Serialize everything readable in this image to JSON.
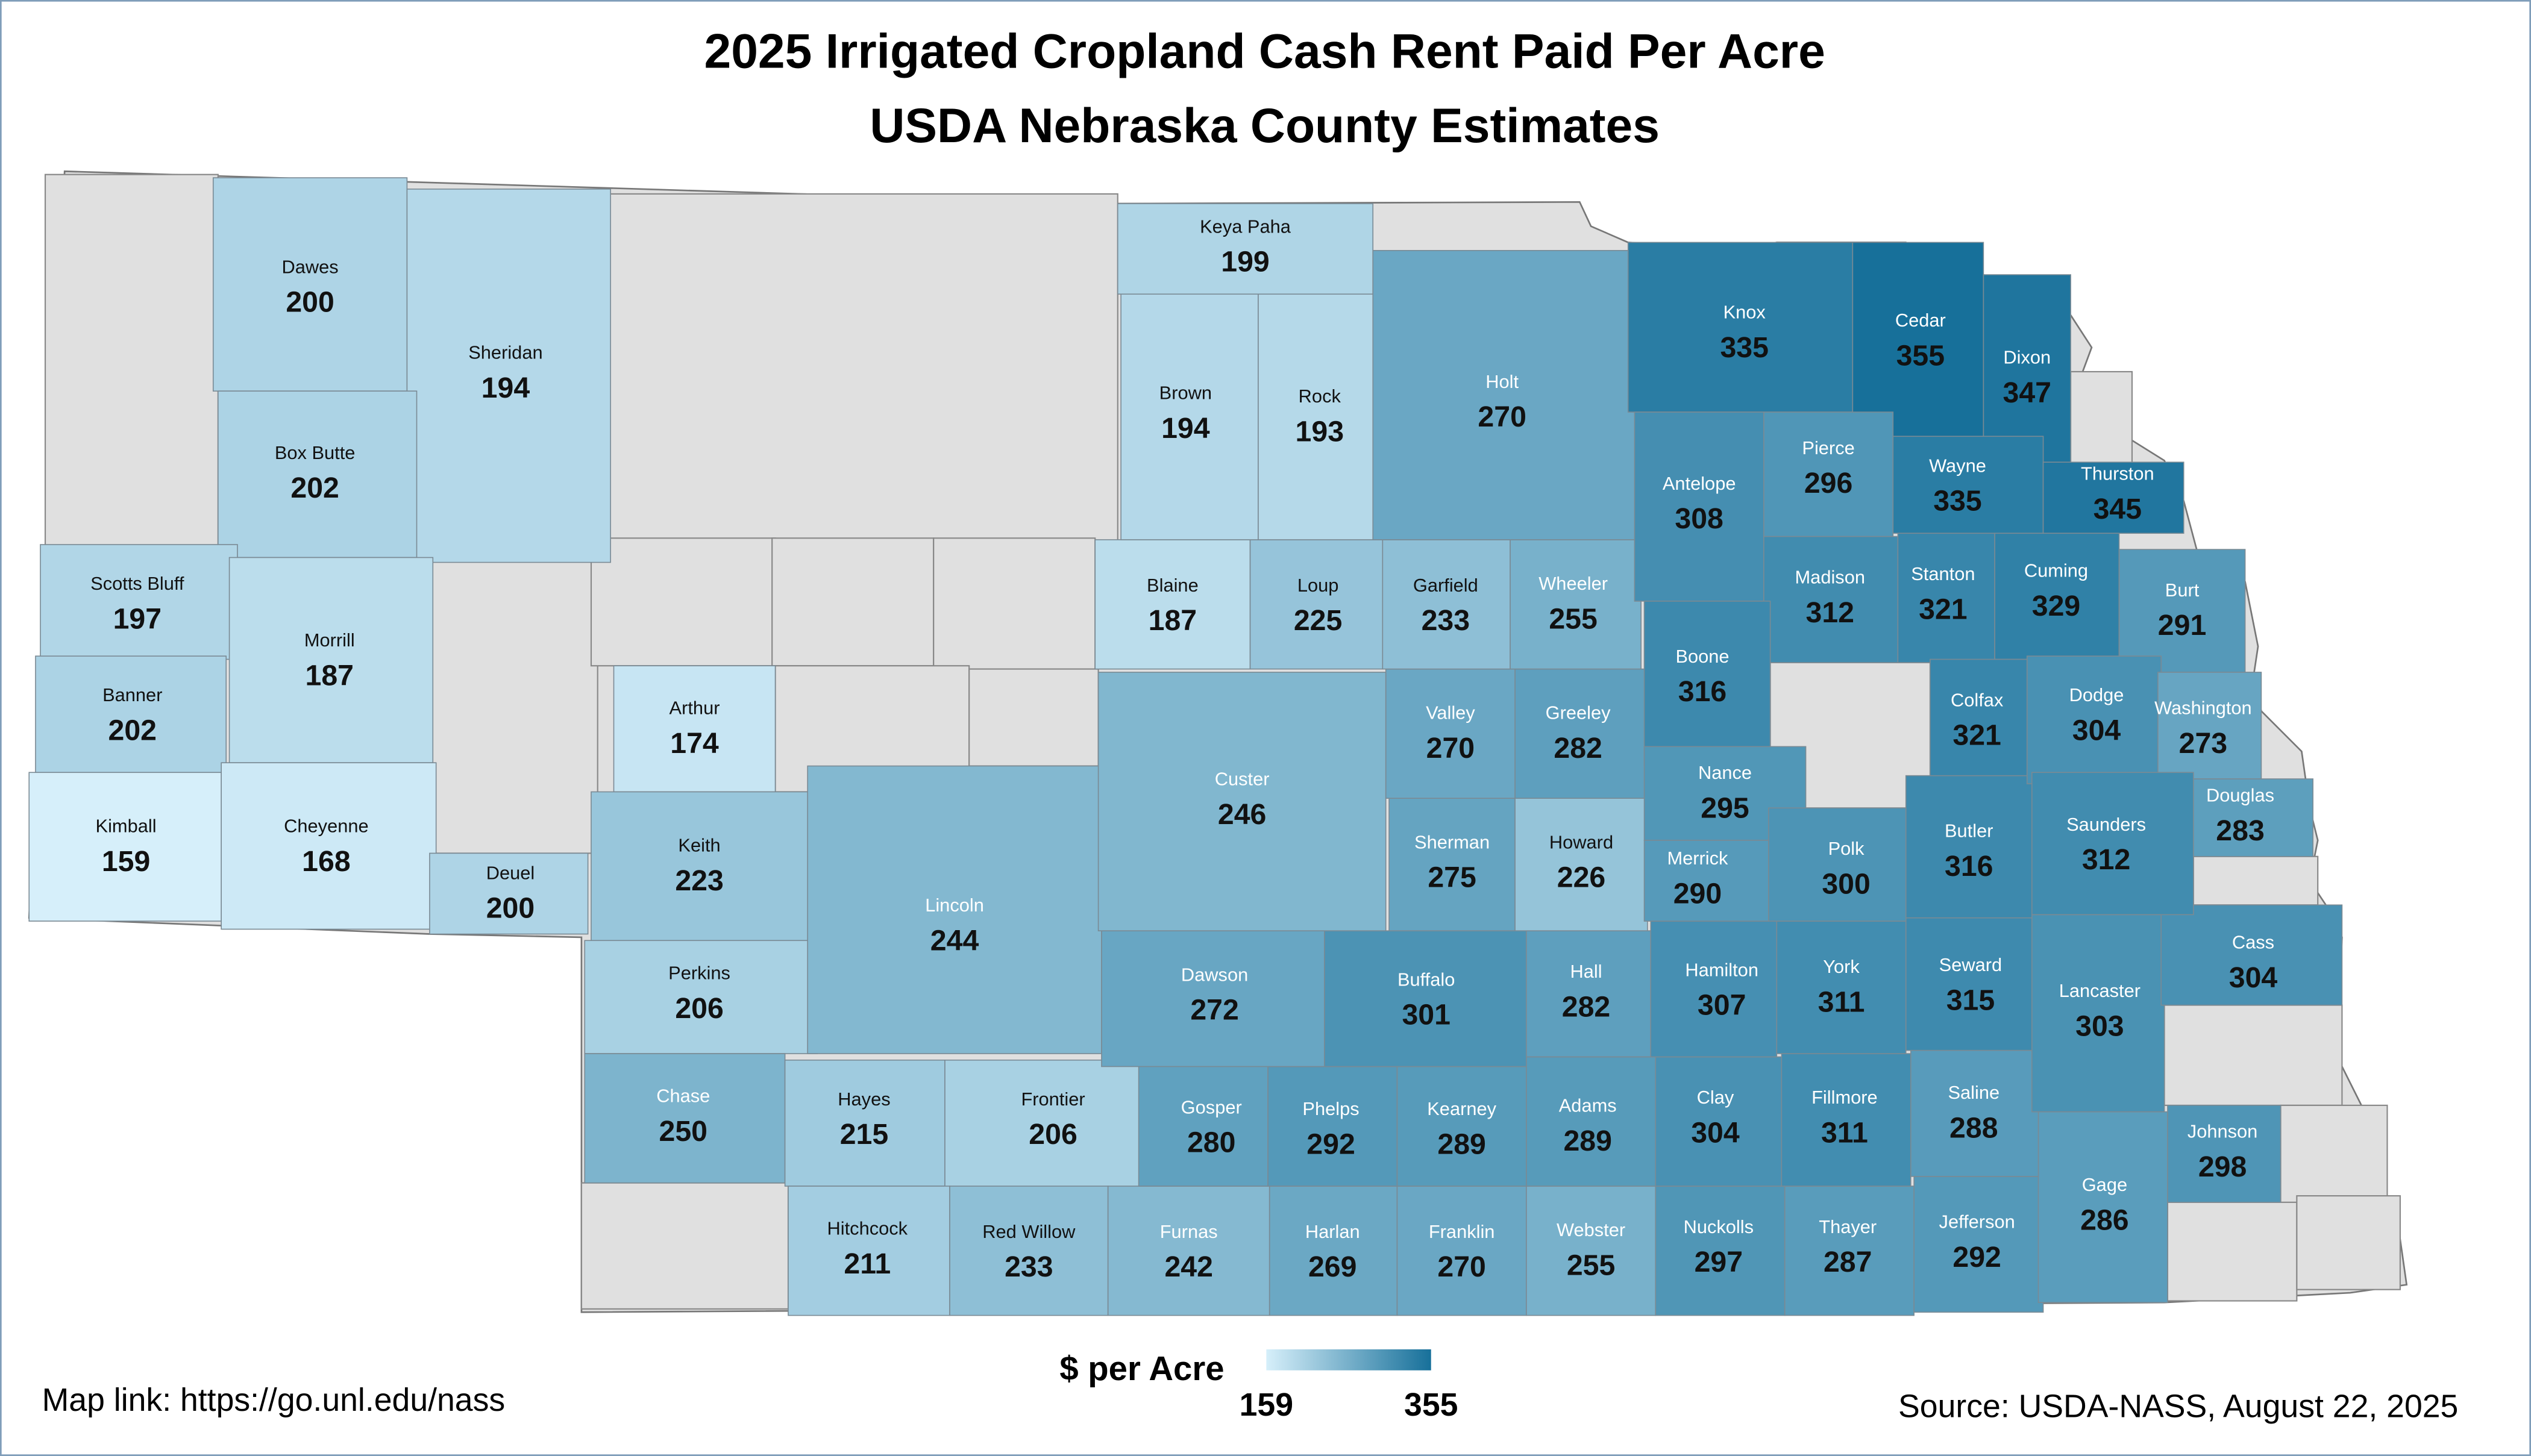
{
  "title": "2025 Irrigated Cropland Cash Rent Paid Per Acre",
  "subtitle": "USDA Nebraska County Estimates",
  "counties": [
    {
      "name": "Dawes",
      "value": 200
    },
    {
      "name": "Sheridan",
      "value": 194
    },
    {
      "name": "Box Butte",
      "value": 202
    },
    {
      "name": "Scotts Bluff",
      "value": 197
    },
    {
      "name": "Morrill",
      "value": 187
    },
    {
      "name": "Banner",
      "value": 202
    },
    {
      "name": "Kimball",
      "value": 159
    },
    {
      "name": "Cheyenne",
      "value": 168
    },
    {
      "name": "Deuel",
      "value": 200
    },
    {
      "name": "Arthur",
      "value": 174
    },
    {
      "name": "Keith",
      "value": 223
    },
    {
      "name": "Perkins",
      "value": 206
    },
    {
      "name": "Lincoln",
      "value": 244
    },
    {
      "name": "Chase",
      "value": 250
    },
    {
      "name": "Hayes",
      "value": 215
    },
    {
      "name": "Frontier",
      "value": 206
    },
    {
      "name": "Hitchcock",
      "value": 211
    },
    {
      "name": "Red Willow",
      "value": 233
    },
    {
      "name": "Furnas",
      "value": 242
    },
    {
      "name": "Harlan",
      "value": 269
    },
    {
      "name": "Franklin",
      "value": 270
    },
    {
      "name": "Webster",
      "value": 255
    },
    {
      "name": "Nuckolls",
      "value": 297
    },
    {
      "name": "Thayer",
      "value": 287
    },
    {
      "name": "Jefferson",
      "value": 292
    },
    {
      "name": "Gage",
      "value": 286
    },
    {
      "name": "Johnson",
      "value": 298
    },
    {
      "name": "Gosper",
      "value": 280
    },
    {
      "name": "Phelps",
      "value": 292
    },
    {
      "name": "Kearney",
      "value": 289
    },
    {
      "name": "Adams",
      "value": 289
    },
    {
      "name": "Clay",
      "value": 304
    },
    {
      "name": "Fillmore",
      "value": 311
    },
    {
      "name": "Saline",
      "value": 288
    },
    {
      "name": "Dawson",
      "value": 272
    },
    {
      "name": "Buffalo",
      "value": 301
    },
    {
      "name": "Hall",
      "value": 282
    },
    {
      "name": "Hamilton",
      "value": 307
    },
    {
      "name": "York",
      "value": 311
    },
    {
      "name": "Seward",
      "value": 315
    },
    {
      "name": "Lancaster",
      "value": 303
    },
    {
      "name": "Cass",
      "value": 304
    },
    {
      "name": "Custer",
      "value": 246
    },
    {
      "name": "Sherman",
      "value": 275
    },
    {
      "name": "Howard",
      "value": 226
    },
    {
      "name": "Valley",
      "value": 270
    },
    {
      "name": "Greeley",
      "value": 282
    },
    {
      "name": "Blaine",
      "value": 187
    },
    {
      "name": "Loup",
      "value": 225
    },
    {
      "name": "Garfield",
      "value": 233
    },
    {
      "name": "Wheeler",
      "value": 255
    },
    {
      "name": "Brown",
      "value": 194
    },
    {
      "name": "Rock",
      "value": 193
    },
    {
      "name": "Keya Paha",
      "value": 199
    },
    {
      "name": "Holt",
      "value": 270
    },
    {
      "name": "Knox",
      "value": 335
    },
    {
      "name": "Cedar",
      "value": 355
    },
    {
      "name": "Dixon",
      "value": 347
    },
    {
      "name": "Antelope",
      "value": 308
    },
    {
      "name": "Pierce",
      "value": 296
    },
    {
      "name": "Wayne",
      "value": 335
    },
    {
      "name": "Thurston",
      "value": 345
    },
    {
      "name": "Madison",
      "value": 312
    },
    {
      "name": "Stanton",
      "value": 321
    },
    {
      "name": "Cuming",
      "value": 329
    },
    {
      "name": "Burt",
      "value": 291
    },
    {
      "name": "Boone",
      "value": 316
    },
    {
      "name": "Nance",
      "value": 295
    },
    {
      "name": "Merrick",
      "value": 290
    },
    {
      "name": "Polk",
      "value": 300
    },
    {
      "name": "Butler",
      "value": 316
    },
    {
      "name": "Colfax",
      "value": 321
    },
    {
      "name": "Dodge",
      "value": 304
    },
    {
      "name": "Washington",
      "value": 273
    },
    {
      "name": "Douglas",
      "value": 283
    },
    {
      "name": "Saunders",
      "value": 312
    }
  ],
  "legend": {
    "label": "$ per Acre",
    "min": 159,
    "max": 355,
    "colors": [
      "#d6effa",
      "#17709a"
    ]
  },
  "footer": {
    "map_link": "Map link: https://go.unl.edu/nass",
    "source": "Source: USDA-NASS, August 22, 2025"
  }
}
